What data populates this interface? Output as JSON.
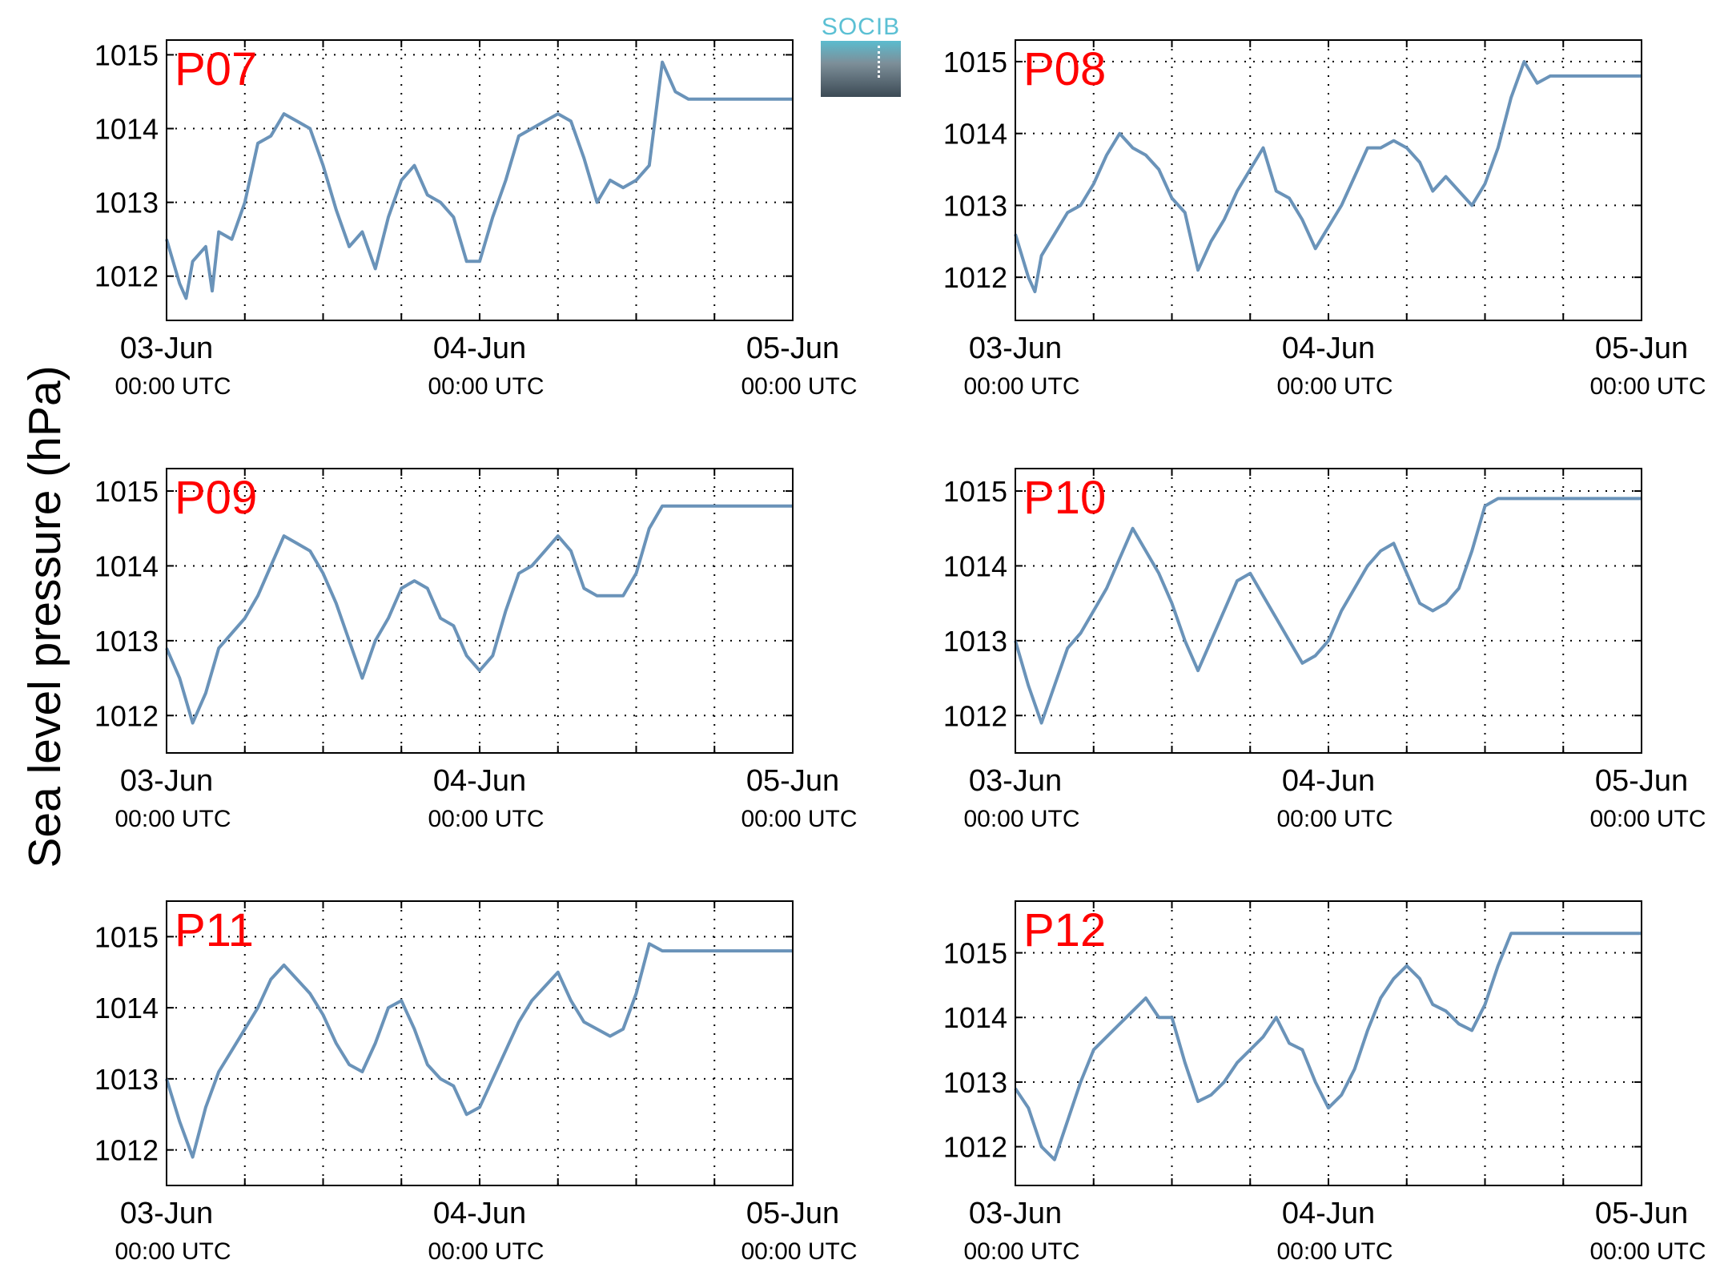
{
  "figure": {
    "ylabel": "Sea level pressure (hPa)",
    "logo_text": "SOCIB",
    "line_color": "#6a93b9",
    "label_color": "#ff0000"
  },
  "chart_data": [
    {
      "type": "line",
      "station": "P07",
      "xlabel": "",
      "ylabel": "Sea level pressure (hPa)",
      "xlim_hours": [
        0,
        48
      ],
      "xticks": [
        {
          "date": "03-Jun",
          "time": "00:00 UTC",
          "hour": 0
        },
        {
          "date": "04-Jun",
          "time": "00:00 UTC",
          "hour": 24
        },
        {
          "date": "05-Jun",
          "time": "00:00 UTC",
          "hour": 48
        }
      ],
      "ylim": [
        1011.4,
        1015.2
      ],
      "yticks": [
        1012,
        1013,
        1014,
        1015
      ],
      "x": [
        0,
        1,
        1.5,
        2,
        3,
        3.5,
        4,
        5,
        6,
        7,
        8,
        9,
        10,
        11,
        12,
        13,
        14,
        15,
        16,
        17,
        18,
        19,
        20,
        21,
        22,
        23,
        24,
        25,
        26,
        27,
        28,
        29,
        30,
        31,
        32,
        33,
        34,
        35,
        36,
        37,
        38,
        39,
        40,
        41,
        42,
        43,
        44,
        45,
        46,
        47,
        48
      ],
      "values": [
        1012.5,
        1011.9,
        1011.7,
        1012.2,
        1012.4,
        1011.8,
        1012.6,
        1012.5,
        1013.0,
        1013.8,
        1013.9,
        1014.2,
        1014.1,
        1014.0,
        1013.5,
        1012.9,
        1012.4,
        1012.6,
        1012.1,
        1012.8,
        1013.3,
        1013.5,
        1013.1,
        1013.0,
        1012.8,
        1012.2,
        1012.2,
        1012.8,
        1013.3,
        1013.9,
        1014.0,
        1014.1,
        1014.2,
        1014.1,
        1013.6,
        1013.0,
        1013.3,
        1013.2,
        1013.3,
        1013.5,
        1014.9,
        1014.5,
        1014.4,
        1014.4,
        1014.4,
        1014.4,
        1014.4,
        1014.4,
        1014.4,
        1014.4,
        1014.4
      ]
    },
    {
      "type": "line",
      "station": "P08",
      "xlabel": "",
      "ylabel": "Sea level pressure (hPa)",
      "xlim_hours": [
        0,
        48
      ],
      "xticks": [
        {
          "date": "03-Jun",
          "time": "00:00 UTC",
          "hour": 0
        },
        {
          "date": "04-Jun",
          "time": "00:00 UTC",
          "hour": 24
        },
        {
          "date": "05-Jun",
          "time": "00:00 UTC",
          "hour": 48
        }
      ],
      "ylim": [
        1011.4,
        1015.3
      ],
      "yticks": [
        1012,
        1013,
        1014,
        1015
      ],
      "x": [
        0,
        1,
        1.5,
        2,
        3,
        4,
        5,
        6,
        7,
        8,
        9,
        10,
        11,
        12,
        13,
        14,
        15,
        16,
        17,
        18,
        19,
        20,
        21,
        22,
        23,
        24,
        25,
        26,
        27,
        28,
        29,
        30,
        31,
        32,
        33,
        34,
        35,
        36,
        37,
        38,
        39,
        40,
        41,
        42,
        43,
        44,
        45,
        46,
        47,
        48
      ],
      "values": [
        1012.6,
        1012.0,
        1011.8,
        1012.3,
        1012.6,
        1012.9,
        1013.0,
        1013.3,
        1013.7,
        1014.0,
        1013.8,
        1013.7,
        1013.5,
        1013.1,
        1012.9,
        1012.1,
        1012.5,
        1012.8,
        1013.2,
        1013.5,
        1013.8,
        1013.2,
        1013.1,
        1012.8,
        1012.4,
        1012.7,
        1013.0,
        1013.4,
        1013.8,
        1013.8,
        1013.9,
        1013.8,
        1013.6,
        1013.2,
        1013.4,
        1013.2,
        1013.0,
        1013.3,
        1013.8,
        1014.5,
        1015.0,
        1014.7,
        1014.8,
        1014.8,
        1014.8,
        1014.8,
        1014.8,
        1014.8,
        1014.8,
        1014.8
      ]
    },
    {
      "type": "line",
      "station": "P09",
      "xlabel": "",
      "ylabel": "Sea level pressure (hPa)",
      "xlim_hours": [
        0,
        48
      ],
      "xticks": [
        {
          "date": "03-Jun",
          "time": "00:00 UTC",
          "hour": 0
        },
        {
          "date": "04-Jun",
          "time": "00:00 UTC",
          "hour": 24
        },
        {
          "date": "05-Jun",
          "time": "00:00 UTC",
          "hour": 48
        }
      ],
      "ylim": [
        1011.5,
        1015.3
      ],
      "yticks": [
        1012,
        1013,
        1014,
        1015
      ],
      "x": [
        0,
        1,
        2,
        3,
        4,
        5,
        6,
        7,
        8,
        9,
        10,
        11,
        12,
        13,
        14,
        15,
        16,
        17,
        18,
        19,
        20,
        21,
        22,
        23,
        24,
        25,
        26,
        27,
        28,
        29,
        30,
        31,
        32,
        33,
        34,
        35,
        36,
        37,
        38,
        39,
        40,
        41,
        42,
        43,
        44,
        45,
        46,
        47,
        48
      ],
      "values": [
        1012.9,
        1012.5,
        1011.9,
        1012.3,
        1012.9,
        1013.1,
        1013.3,
        1013.6,
        1014.0,
        1014.4,
        1014.3,
        1014.2,
        1013.9,
        1013.5,
        1013.0,
        1012.5,
        1013.0,
        1013.3,
        1013.7,
        1013.8,
        1013.7,
        1013.3,
        1013.2,
        1012.8,
        1012.6,
        1012.8,
        1013.4,
        1013.9,
        1014.0,
        1014.2,
        1014.4,
        1014.2,
        1013.7,
        1013.6,
        1013.6,
        1013.6,
        1013.9,
        1014.5,
        1014.8,
        1014.8,
        1014.8,
        1014.8,
        1014.8,
        1014.8,
        1014.8,
        1014.8,
        1014.8,
        1014.8,
        1014.8
      ]
    },
    {
      "type": "line",
      "station": "P10",
      "xlabel": "",
      "ylabel": "Sea level pressure (hPa)",
      "xlim_hours": [
        0,
        48
      ],
      "xticks": [
        {
          "date": "03-Jun",
          "time": "00:00 UTC",
          "hour": 0
        },
        {
          "date": "04-Jun",
          "time": "00:00 UTC",
          "hour": 24
        },
        {
          "date": "05-Jun",
          "time": "00:00 UTC",
          "hour": 48
        }
      ],
      "ylim": [
        1011.5,
        1015.3
      ],
      "yticks": [
        1012,
        1013,
        1014,
        1015
      ],
      "x": [
        0,
        1,
        2,
        3,
        4,
        5,
        6,
        7,
        8,
        9,
        10,
        11,
        12,
        13,
        14,
        15,
        16,
        17,
        18,
        19,
        20,
        21,
        22,
        23,
        24,
        25,
        26,
        27,
        28,
        29,
        30,
        31,
        32,
        33,
        34,
        35,
        36,
        37,
        38,
        39,
        40,
        41,
        42,
        43,
        44,
        45,
        46,
        47,
        48
      ],
      "values": [
        1013.0,
        1012.4,
        1011.9,
        1012.4,
        1012.9,
        1013.1,
        1013.4,
        1013.7,
        1014.1,
        1014.5,
        1014.2,
        1013.9,
        1013.5,
        1013.0,
        1012.6,
        1013.0,
        1013.4,
        1013.8,
        1013.9,
        1013.6,
        1013.3,
        1013.0,
        1012.7,
        1012.8,
        1013.0,
        1013.4,
        1013.7,
        1014.0,
        1014.2,
        1014.3,
        1013.9,
        1013.5,
        1013.4,
        1013.5,
        1013.7,
        1014.2,
        1014.8,
        1014.9,
        1014.9,
        1014.9,
        1014.9,
        1014.9,
        1014.9,
        1014.9,
        1014.9,
        1014.9,
        1014.9,
        1014.9,
        1014.9
      ]
    },
    {
      "type": "line",
      "station": "P11",
      "xlabel": "",
      "ylabel": "Sea level pressure (hPa)",
      "xlim_hours": [
        0,
        48
      ],
      "xticks": [
        {
          "date": "03-Jun",
          "time": "00:00 UTC",
          "hour": 0
        },
        {
          "date": "04-Jun",
          "time": "00:00 UTC",
          "hour": 24
        },
        {
          "date": "05-Jun",
          "time": "00:00 UTC",
          "hour": 48
        }
      ],
      "ylim": [
        1011.5,
        1015.5
      ],
      "yticks": [
        1012,
        1013,
        1014,
        1015
      ],
      "x": [
        0,
        1,
        2,
        3,
        4,
        5,
        6,
        7,
        8,
        9,
        10,
        11,
        12,
        13,
        14,
        15,
        16,
        17,
        18,
        19,
        20,
        21,
        22,
        23,
        24,
        25,
        26,
        27,
        28,
        29,
        30,
        31,
        32,
        33,
        34,
        35,
        36,
        37,
        38,
        39,
        40,
        41,
        42,
        43,
        44,
        45,
        46,
        47,
        48
      ],
      "values": [
        1013.0,
        1012.4,
        1011.9,
        1012.6,
        1013.1,
        1013.4,
        1013.7,
        1014.0,
        1014.4,
        1014.6,
        1014.4,
        1014.2,
        1013.9,
        1013.5,
        1013.2,
        1013.1,
        1013.5,
        1014.0,
        1014.1,
        1013.7,
        1013.2,
        1013.0,
        1012.9,
        1012.5,
        1012.6,
        1013.0,
        1013.4,
        1013.8,
        1014.1,
        1014.3,
        1014.5,
        1014.1,
        1013.8,
        1013.7,
        1013.6,
        1013.7,
        1014.2,
        1014.9,
        1014.8,
        1014.8,
        1014.8,
        1014.8,
        1014.8,
        1014.8,
        1014.8,
        1014.8,
        1014.8,
        1014.8,
        1014.8
      ]
    },
    {
      "type": "line",
      "station": "P12",
      "xlabel": "",
      "ylabel": "Sea level pressure (hPa)",
      "xlim_hours": [
        0,
        48
      ],
      "xticks": [
        {
          "date": "03-Jun",
          "time": "00:00 UTC",
          "hour": 0
        },
        {
          "date": "04-Jun",
          "time": "00:00 UTC",
          "hour": 24
        },
        {
          "date": "05-Jun",
          "time": "00:00 UTC",
          "hour": 48
        }
      ],
      "ylim": [
        1011.4,
        1015.8
      ],
      "yticks": [
        1012,
        1013,
        1014,
        1015
      ],
      "x": [
        0,
        1,
        2,
        3,
        4,
        5,
        6,
        7,
        8,
        9,
        10,
        11,
        12,
        13,
        14,
        15,
        16,
        17,
        18,
        19,
        20,
        21,
        22,
        23,
        24,
        25,
        26,
        27,
        28,
        29,
        30,
        31,
        32,
        33,
        34,
        35,
        36,
        37,
        38,
        39,
        40,
        41,
        42,
        43,
        44,
        45,
        46,
        47,
        48
      ],
      "values": [
        1012.9,
        1012.6,
        1012.0,
        1011.8,
        1012.4,
        1013.0,
        1013.5,
        1013.7,
        1013.9,
        1014.1,
        1014.3,
        1014.0,
        1014.0,
        1013.3,
        1012.7,
        1012.8,
        1013.0,
        1013.3,
        1013.5,
        1013.7,
        1014.0,
        1013.6,
        1013.5,
        1013.0,
        1012.6,
        1012.8,
        1013.2,
        1013.8,
        1014.3,
        1014.6,
        1014.8,
        1014.6,
        1014.2,
        1014.1,
        1013.9,
        1013.8,
        1014.2,
        1014.8,
        1015.3,
        1015.3,
        1015.3,
        1015.3,
        1015.3,
        1015.3,
        1015.3,
        1015.3,
        1015.3,
        1015.3,
        1015.3
      ]
    }
  ]
}
